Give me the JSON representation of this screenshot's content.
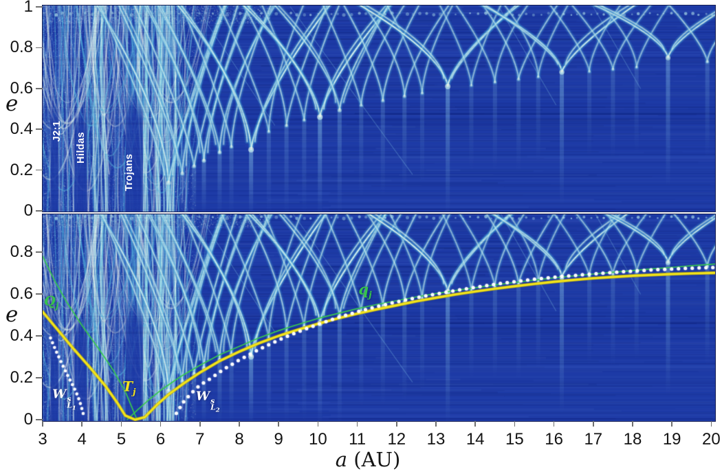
{
  "figure": {
    "description": "Two stacked dynamical heat maps of (a,e) space; bottom panel repeats the map with overlaid analytic curves",
    "background": "#ffffff"
  },
  "axes": {
    "x": {
      "label_var": "a",
      "label_unit": "(AU)",
      "min": 3,
      "max": 20,
      "ticks": [
        "3",
        "4",
        "5",
        "6",
        "7",
        "8",
        "9",
        "10",
        "11",
        "12",
        "13",
        "14",
        "15",
        "16",
        "17",
        "18",
        "19",
        "20"
      ]
    },
    "y_top": {
      "label": "e",
      "ticks": [
        "1",
        "0.8",
        "0.6",
        "0.4",
        "0.2",
        "0"
      ],
      "values": [
        1,
        0.8,
        0.6,
        0.4,
        0.2,
        0
      ]
    },
    "y_bottom": {
      "label": "e",
      "ticks": [
        "0.8",
        "0.6",
        "0.4",
        "0.2",
        "0"
      ],
      "values": [
        0.8,
        0.6,
        0.4,
        0.2,
        0
      ]
    }
  },
  "top_panel_annotations": {
    "j21": {
      "text": "J2:1",
      "a": 3.37,
      "e": 0.39
    },
    "hildas": {
      "text": "Hildas",
      "a": 3.98,
      "e": 0.31
    },
    "trojans": {
      "text": "Trojans",
      "a": 5.2,
      "e": 0.19
    }
  },
  "curve_labels": {
    "Qj": {
      "base": "Q",
      "sub": "j",
      "a": 3.22,
      "e": 0.56
    },
    "qj": {
      "base": "q",
      "sub": "j",
      "a": 11.2,
      "e": 0.615
    },
    "Tj": {
      "base": "T",
      "sub": "j",
      "a": 5.2,
      "e": 0.155
    },
    "WL1": {
      "base": "W",
      "sup": "s",
      "sub": "L",
      "subsub": "1",
      "a": 3.55,
      "e": 0.1
    },
    "WL2": {
      "base": "W",
      "sup": "s",
      "sub": "L",
      "subsub": "2",
      "a": 7.2,
      "e": 0.09
    }
  },
  "chart_data": {
    "type": "heatmap",
    "x_range": [
      3,
      20.15
    ],
    "e_range": [
      0,
      1
    ],
    "panels": [
      "top: dynamical map of (a,e)",
      "bottom: same map with overlaid curves Qj, qj, Tj, W s L1, W s L2"
    ],
    "colors": {
      "background": "#1d3aa6",
      "feature_glow": "#3c96d2",
      "feature_mid": "#78cdeb",
      "feature_core": "#f6faec",
      "curve_green": "#38c94e",
      "curve_yellow": "#f2e41e",
      "curve_yellow_edge": "#b9ab10",
      "manifold_white": "#ffffff",
      "tick_color": "#6f6f6f",
      "text_color": "#141414"
    },
    "resonance_features": [
      [
        6.2,
        0.75
      ],
      [
        6.55,
        0.5
      ],
      [
        6.85,
        0.45
      ],
      [
        7.1,
        0.55
      ],
      [
        7.5,
        0.5
      ],
      [
        7.8,
        0.35
      ],
      [
        8.3,
        1.0,
        0.3
      ],
      [
        8.75,
        0.3
      ],
      [
        9.2,
        0.35
      ],
      [
        9.65,
        0.3
      ],
      [
        10.05,
        1.0,
        0.46
      ],
      [
        10.55,
        0.55
      ],
      [
        11.1,
        0.3
      ],
      [
        11.65,
        0.35
      ],
      [
        12.2,
        0.35
      ],
      [
        12.65,
        0.25
      ],
      [
        13.3,
        0.95,
        0.61
      ],
      [
        13.9,
        0.2
      ],
      [
        14.5,
        0.25
      ],
      [
        15.1,
        0.3
      ],
      [
        15.6,
        0.2
      ],
      [
        16.2,
        0.85,
        0.68
      ],
      [
        16.9,
        0.2
      ],
      [
        17.5,
        0.25
      ],
      [
        18.1,
        0.2
      ],
      [
        18.9,
        0.8,
        0.75
      ],
      [
        19.9,
        0.35
      ]
    ],
    "dark_bands": [
      [
        3.3,
        0.1,
        0.58
      ],
      [
        3.97,
        0.16,
        0.52
      ],
      [
        5.33,
        0.22,
        0.6
      ]
    ],
    "left_chaotic_field": {
      "a_min": 3.02,
      "a_max": 6.62
    },
    "texture_diagonals": [
      [
        9.3,
        1.0,
        12.4,
        0.18
      ],
      [
        14.6,
        1.0,
        16.05,
        0.52
      ],
      [
        6.9,
        1.0,
        8.9,
        0.42
      ],
      [
        17.0,
        1.0,
        18.2,
        0.6
      ]
    ],
    "curves": {
      "Qj": {
        "style": "solid-green-thin",
        "points": [
          [
            3.0,
            0.78
          ],
          [
            3.3,
            0.665
          ],
          [
            3.6,
            0.565
          ],
          [
            4.0,
            0.45
          ],
          [
            4.4,
            0.345
          ],
          [
            4.8,
            0.235
          ],
          [
            5.1,
            0.135
          ],
          [
            5.4,
            0.0
          ]
        ]
      },
      "qj": {
        "style": "solid-green-thin",
        "points": [
          [
            5.15,
            0.0
          ],
          [
            5.4,
            0.045
          ],
          [
            5.7,
            0.095
          ],
          [
            6.0,
            0.14
          ],
          [
            6.5,
            0.205
          ],
          [
            7.0,
            0.26
          ],
          [
            7.5,
            0.31
          ],
          [
            8.0,
            0.35
          ],
          [
            8.5,
            0.39
          ],
          [
            9.0,
            0.425
          ],
          [
            9.5,
            0.455
          ],
          [
            10.0,
            0.483
          ],
          [
            10.5,
            0.507
          ],
          [
            11.0,
            0.53
          ],
          [
            11.5,
            0.55
          ],
          [
            12.0,
            0.568
          ],
          [
            12.5,
            0.586
          ],
          [
            13.0,
            0.602
          ],
          [
            13.5,
            0.617
          ],
          [
            14.0,
            0.63
          ],
          [
            14.5,
            0.643
          ],
          [
            15.0,
            0.655
          ],
          [
            15.5,
            0.666
          ],
          [
            16.0,
            0.677
          ],
          [
            16.5,
            0.686
          ],
          [
            17.0,
            0.695
          ],
          [
            17.5,
            0.704
          ],
          [
            18.0,
            0.712
          ],
          [
            18.5,
            0.72
          ],
          [
            19.0,
            0.727
          ],
          [
            19.5,
            0.735
          ],
          [
            20.15,
            0.744
          ]
        ]
      },
      "Tj": {
        "style": "solid-yellow-thick",
        "points": [
          [
            3.0,
            0.515
          ],
          [
            3.4,
            0.425
          ],
          [
            3.8,
            0.335
          ],
          [
            4.2,
            0.25
          ],
          [
            4.6,
            0.16
          ],
          [
            4.9,
            0.08
          ],
          [
            5.1,
            0.02
          ],
          [
            5.35,
            0.0
          ],
          [
            5.6,
            0.012
          ],
          [
            5.9,
            0.07
          ],
          [
            6.2,
            0.12
          ],
          [
            6.6,
            0.175
          ],
          [
            7.0,
            0.225
          ],
          [
            7.5,
            0.28
          ],
          [
            8.0,
            0.325
          ],
          [
            8.5,
            0.365
          ],
          [
            9.0,
            0.4
          ],
          [
            9.5,
            0.43
          ],
          [
            10.0,
            0.458
          ],
          [
            10.5,
            0.483
          ],
          [
            11.0,
            0.506
          ],
          [
            11.5,
            0.527
          ],
          [
            12.0,
            0.546
          ],
          [
            12.5,
            0.565
          ],
          [
            13.0,
            0.582
          ],
          [
            13.5,
            0.598
          ],
          [
            14.0,
            0.612
          ],
          [
            14.5,
            0.625
          ],
          [
            15.0,
            0.637
          ],
          [
            15.5,
            0.648
          ],
          [
            16.0,
            0.658
          ],
          [
            16.5,
            0.667
          ],
          [
            17.0,
            0.675
          ],
          [
            17.5,
            0.681
          ],
          [
            18.0,
            0.687
          ],
          [
            18.5,
            0.691
          ],
          [
            19.0,
            0.695
          ],
          [
            19.5,
            0.698
          ],
          [
            20.15,
            0.701
          ]
        ]
      },
      "WL1": {
        "style": "dotted-white",
        "points": [
          [
            3.2,
            0.39
          ],
          [
            3.32,
            0.337
          ],
          [
            3.44,
            0.287
          ],
          [
            3.56,
            0.24
          ],
          [
            3.68,
            0.195
          ],
          [
            3.8,
            0.152
          ],
          [
            3.9,
            0.11
          ],
          [
            3.98,
            0.065
          ],
          [
            4.03,
            0.03
          ],
          [
            4.06,
            0.01
          ]
        ]
      },
      "WL2": {
        "style": "dotted-white",
        "points": [
          [
            6.4,
            0.03
          ],
          [
            6.6,
            0.09
          ],
          [
            6.8,
            0.13
          ],
          [
            7.0,
            0.165
          ],
          [
            7.3,
            0.2
          ],
          [
            7.6,
            0.24
          ],
          [
            8.0,
            0.285
          ],
          [
            8.5,
            0.335
          ],
          [
            9.0,
            0.38
          ],
          [
            9.5,
            0.42
          ],
          [
            10.0,
            0.455
          ],
          [
            10.5,
            0.487
          ],
          [
            11.0,
            0.515
          ],
          [
            11.5,
            0.54
          ],
          [
            12.0,
            0.562
          ],
          [
            12.5,
            0.582
          ],
          [
            13.0,
            0.6
          ],
          [
            13.5,
            0.616
          ],
          [
            14.0,
            0.632
          ],
          [
            14.5,
            0.646
          ],
          [
            15.0,
            0.659
          ],
          [
            15.5,
            0.67
          ],
          [
            16.0,
            0.68
          ],
          [
            16.5,
            0.688
          ],
          [
            17.0,
            0.696
          ],
          [
            17.5,
            0.703
          ],
          [
            18.0,
            0.709
          ],
          [
            18.5,
            0.715
          ],
          [
            19.0,
            0.719
          ],
          [
            19.5,
            0.723
          ],
          [
            20.1,
            0.727
          ]
        ]
      }
    }
  }
}
